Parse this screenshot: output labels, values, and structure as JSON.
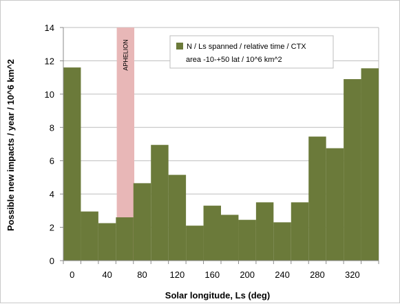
{
  "chart_data": {
    "type": "bar",
    "title": "",
    "xlabel": "Solar longitude, Ls (deg)",
    "ylabel": "Possible new impacts / year / 10^6 km^2",
    "ylim": [
      0,
      14
    ],
    "yticks": [
      "0",
      "2",
      "4",
      "6",
      "8",
      "10",
      "12",
      "14"
    ],
    "xlim": [
      -10,
      350
    ],
    "xticks": [
      "0",
      "40",
      "80",
      "120",
      "160",
      "200",
      "240",
      "280",
      "320"
    ],
    "grid": "horizontal",
    "legend_position": "top-right",
    "bar_color": "#6b7a3a",
    "series": [
      {
        "name": "N / Ls spanned / relative time / CTX area -10-+50 lat / 10^6 km^2",
        "categories": [
          "0",
          "20",
          "40",
          "60",
          "80",
          "100",
          "120",
          "140",
          "160",
          "180",
          "200",
          "220",
          "240",
          "260",
          "280",
          "300",
          "320",
          "340"
        ],
        "values": [
          11.6,
          2.95,
          2.25,
          2.6,
          4.65,
          6.95,
          5.15,
          2.1,
          3.3,
          2.75,
          2.45,
          3.5,
          2.3,
          3.5,
          7.45,
          6.75,
          10.9,
          11.55
        ]
      }
    ],
    "annotations": [
      {
        "text": "APHELION",
        "x_range": [
          51,
          71
        ],
        "color": "#e8b7b7"
      }
    ]
  }
}
